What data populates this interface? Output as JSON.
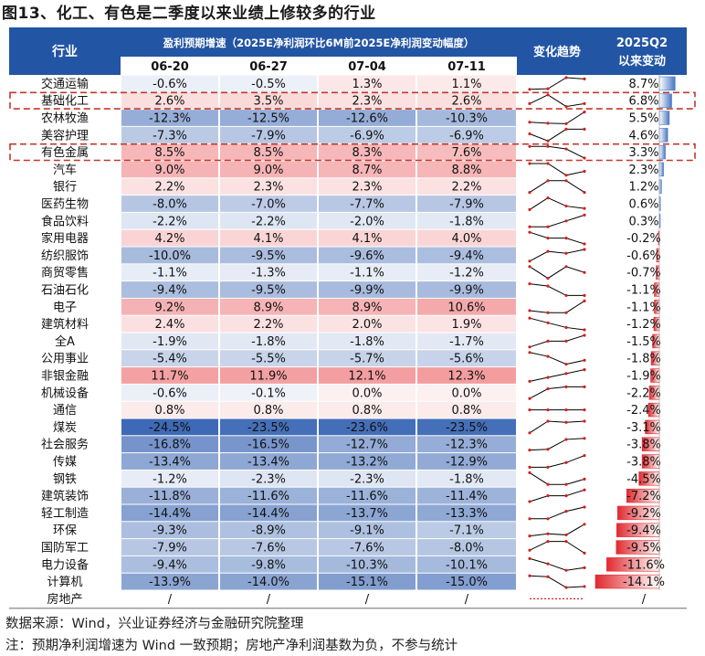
{
  "figure": {
    "title": "图13、化工、有色是二季度以来业绩上修较多的行业",
    "source": "数据来源：Wind，兴业证券经济与金融研究院整理",
    "note": "注：预期净利润增速为 Wind 一致预期；房地产净利润基数为负，不参与统计"
  },
  "chart_data": {
    "type": "table",
    "title": "图13、化工、有色是二季度以来业绩上修较多的行业",
    "columns": {
      "industry": "行业",
      "group_header": "盈利预期增速（2025E净利润环比6M前2025E净利润变动幅度）",
      "dates": [
        "06-20",
        "06-27",
        "07-04",
        "07-11"
      ],
      "trend": "变化趋势",
      "change_line1": "2025Q2",
      "change_line2": "以来变动"
    },
    "rows": [
      {
        "name": "交通运输",
        "values": [
          -0.6,
          -0.5,
          1.3,
          1.1
        ],
        "labels": [
          "-0.6%",
          "-0.5%",
          "1.3%",
          "1.1%"
        ],
        "change": 8.7,
        "change_label": "8.7%"
      },
      {
        "name": "基础化工",
        "values": [
          2.6,
          3.5,
          2.3,
          2.6
        ],
        "labels": [
          "2.6%",
          "3.5%",
          "2.3%",
          "2.6%"
        ],
        "change": 6.8,
        "change_label": "6.8%"
      },
      {
        "name": "农林牧渔",
        "values": [
          -12.3,
          -12.5,
          -12.6,
          -10.3
        ],
        "labels": [
          "-12.3%",
          "-12.5%",
          "-12.6%",
          "-10.3%"
        ],
        "change": 5.5,
        "change_label": "5.5%"
      },
      {
        "name": "美容护理",
        "values": [
          -7.3,
          -7.9,
          -6.9,
          -6.9
        ],
        "labels": [
          "-7.3%",
          "-7.9%",
          "-6.9%",
          "-6.9%"
        ],
        "change": 4.6,
        "change_label": "4.6%"
      },
      {
        "name": "有色金属",
        "values": [
          8.5,
          8.5,
          8.3,
          7.6
        ],
        "labels": [
          "8.5%",
          "8.5%",
          "8.3%",
          "7.6%"
        ],
        "change": 3.3,
        "change_label": "3.3%"
      },
      {
        "name": "汽车",
        "values": [
          9.0,
          9.0,
          8.7,
          8.8
        ],
        "labels": [
          "9.0%",
          "9.0%",
          "8.7%",
          "8.8%"
        ],
        "change": 2.3,
        "change_label": "2.3%"
      },
      {
        "name": "银行",
        "values": [
          2.2,
          2.3,
          2.3,
          2.2
        ],
        "labels": [
          "2.2%",
          "2.3%",
          "2.3%",
          "2.2%"
        ],
        "change": 1.2,
        "change_label": "1.2%"
      },
      {
        "name": "医药生物",
        "values": [
          -8.0,
          -7.0,
          -7.7,
          -7.9
        ],
        "labels": [
          "-8.0%",
          "-7.0%",
          "-7.7%",
          "-7.9%"
        ],
        "change": 0.6,
        "change_label": "0.6%"
      },
      {
        "name": "食品饮料",
        "values": [
          -2.2,
          -2.2,
          -2.0,
          -1.8
        ],
        "labels": [
          "-2.2%",
          "-2.2%",
          "-2.0%",
          "-1.8%"
        ],
        "change": 0.3,
        "change_label": "0.3%"
      },
      {
        "name": "家用电器",
        "values": [
          4.2,
          4.1,
          4.1,
          4.0
        ],
        "labels": [
          "4.2%",
          "4.1%",
          "4.1%",
          "4.0%"
        ],
        "change": -0.2,
        "change_label": "-0.2%"
      },
      {
        "name": "纺织服饰",
        "values": [
          -10.0,
          -9.5,
          -9.6,
          -9.4
        ],
        "labels": [
          "-10.0%",
          "-9.5%",
          "-9.6%",
          "-9.4%"
        ],
        "change": -0.6,
        "change_label": "-0.6%"
      },
      {
        "name": "商贸零售",
        "values": [
          -1.1,
          -1.3,
          -1.1,
          -1.2
        ],
        "labels": [
          "-1.1%",
          "-1.3%",
          "-1.1%",
          "-1.2%"
        ],
        "change": -0.7,
        "change_label": "-0.7%"
      },
      {
        "name": "石油石化",
        "values": [
          -9.4,
          -9.5,
          -9.9,
          -9.9
        ],
        "labels": [
          "-9.4%",
          "-9.5%",
          "-9.9%",
          "-9.9%"
        ],
        "change": -1.1,
        "change_label": "-1.1%"
      },
      {
        "name": "电子",
        "values": [
          9.2,
          8.9,
          8.9,
          10.6
        ],
        "labels": [
          "9.2%",
          "8.9%",
          "8.9%",
          "10.6%"
        ],
        "change": -1.1,
        "change_label": "-1.1%"
      },
      {
        "name": "建筑材料",
        "values": [
          2.4,
          2.2,
          2.0,
          1.9
        ],
        "labels": [
          "2.4%",
          "2.2%",
          "2.0%",
          "1.9%"
        ],
        "change": -1.2,
        "change_label": "-1.2%"
      },
      {
        "name": "全A",
        "values": [
          -1.9,
          -1.8,
          -1.8,
          -1.7
        ],
        "labels": [
          "-1.9%",
          "-1.8%",
          "-1.8%",
          "-1.7%"
        ],
        "change": -1.5,
        "change_label": "-1.5%"
      },
      {
        "name": "公用事业",
        "values": [
          -5.4,
          -5.5,
          -5.7,
          -5.6
        ],
        "labels": [
          "-5.4%",
          "-5.5%",
          "-5.7%",
          "-5.6%"
        ],
        "change": -1.8,
        "change_label": "-1.8%"
      },
      {
        "name": "非银金融",
        "values": [
          11.7,
          11.9,
          12.1,
          12.3
        ],
        "labels": [
          "11.7%",
          "11.9%",
          "12.1%",
          "12.3%"
        ],
        "change": -1.9,
        "change_label": "-1.9%"
      },
      {
        "name": "机械设备",
        "values": [
          -0.6,
          -0.1,
          0.0,
          0.0
        ],
        "labels": [
          "-0.6%",
          "-0.1%",
          "0.0%",
          "0.0%"
        ],
        "change": -2.2,
        "change_label": "-2.2%"
      },
      {
        "name": "通信",
        "values": [
          0.8,
          0.8,
          0.8,
          0.8
        ],
        "labels": [
          "0.8%",
          "0.8%",
          "0.8%",
          "0.8%"
        ],
        "change": -2.4,
        "change_label": "-2.4%"
      },
      {
        "name": "煤炭",
        "values": [
          -24.5,
          -23.5,
          -23.6,
          -23.5
        ],
        "labels": [
          "-24.5%",
          "-23.5%",
          "-23.6%",
          "-23.5%"
        ],
        "change": -3.1,
        "change_label": "-3.1%"
      },
      {
        "name": "社会服务",
        "values": [
          -16.8,
          -16.5,
          -12.7,
          -12.3
        ],
        "labels": [
          "-16.8%",
          "-16.5%",
          "-12.7%",
          "-12.3%"
        ],
        "change": -3.8,
        "change_label": "-3.8%"
      },
      {
        "name": "传媒",
        "values": [
          -13.4,
          -13.4,
          -13.2,
          -12.9
        ],
        "labels": [
          "-13.4%",
          "-13.4%",
          "-13.2%",
          "-12.9%"
        ],
        "change": -3.8,
        "change_label": "-3.8%"
      },
      {
        "name": "钢铁",
        "values": [
          -1.2,
          -2.3,
          -2.3,
          -1.8
        ],
        "labels": [
          "-1.2%",
          "-2.3%",
          "-2.3%",
          "-1.8%"
        ],
        "change": -4.5,
        "change_label": "-4.5%"
      },
      {
        "name": "建筑装饰",
        "values": [
          -11.8,
          -11.6,
          -11.6,
          -11.4
        ],
        "labels": [
          "-11.8%",
          "-11.6%",
          "-11.6%",
          "-11.4%"
        ],
        "change": -7.2,
        "change_label": "-7.2%"
      },
      {
        "name": "轻工制造",
        "values": [
          -14.4,
          -14.4,
          -13.7,
          -13.3
        ],
        "labels": [
          "-14.4%",
          "-14.4%",
          "-13.7%",
          "-13.3%"
        ],
        "change": -9.2,
        "change_label": "-9.2%"
      },
      {
        "name": "环保",
        "values": [
          -9.3,
          -8.9,
          -9.1,
          -7.1
        ],
        "labels": [
          "-9.3%",
          "-8.9%",
          "-9.1%",
          "-7.1%"
        ],
        "change": -9.4,
        "change_label": "-9.4%"
      },
      {
        "name": "国防军工",
        "values": [
          -7.9,
          -7.6,
          -7.6,
          -8.0
        ],
        "labels": [
          "-7.9%",
          "-7.6%",
          "-7.6%",
          "-8.0%"
        ],
        "change": -9.5,
        "change_label": "-9.5%"
      },
      {
        "name": "电力设备",
        "values": [
          -9.4,
          -9.8,
          -10.3,
          -10.1
        ],
        "labels": [
          "-9.4%",
          "-9.8%",
          "-10.3%",
          "-10.1%"
        ],
        "change": -11.6,
        "change_label": "-11.6%"
      },
      {
        "name": "计算机",
        "values": [
          -13.9,
          -14.0,
          -15.1,
          -15.0
        ],
        "labels": [
          "-13.9%",
          "-14.0%",
          "-15.1%",
          "-15.0%"
        ],
        "change": -14.1,
        "change_label": "-14.1%"
      },
      {
        "name": "房地产",
        "values": [
          null,
          null,
          null,
          null
        ],
        "labels": [
          "/",
          "/",
          "/",
          "/"
        ],
        "change": null,
        "change_label": "/"
      }
    ],
    "highlighted_rows": [
      "基础化工",
      "有色金属"
    ],
    "colors": {
      "header": "#2255a4",
      "positive": "#e8474b",
      "negative": "#3a66b4",
      "bar_positive": "#4a78c4",
      "bar_negative": "#e02a30",
      "sparkline": "#000000",
      "sparkline_marker": "#d42020",
      "highlight_border": "#c0392b"
    }
  }
}
